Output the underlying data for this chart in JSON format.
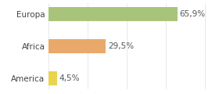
{
  "categories": [
    "America",
    "Africa",
    "Europa"
  ],
  "values": [
    4.5,
    29.5,
    65.9
  ],
  "labels": [
    "4,5%",
    "29,5%",
    "65,9%"
  ],
  "bar_colors": [
    "#e8d44d",
    "#e8a96a",
    "#a8c47a"
  ],
  "background_color": "#ffffff",
  "xlim": [
    0,
    85
  ],
  "label_fontsize": 7.5,
  "tick_fontsize": 7.5,
  "bar_height": 0.45
}
